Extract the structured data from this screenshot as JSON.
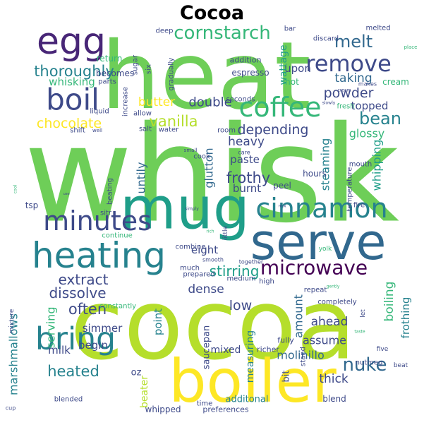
{
  "title": "Cocoa",
  "palette": {
    "dark_purple": "#440154",
    "purple": "#482677",
    "indigo": "#3e4a89",
    "blue": "#31688e",
    "teal_blue": "#26828e",
    "teal": "#1f9e89",
    "green_teal": "#35b779",
    "green": "#6ece58",
    "yellow_green": "#b5de2b",
    "yellow": "#fde725"
  },
  "words": [
    {
      "text": "whisk",
      "color": "#6ece58"
    },
    {
      "text": "heat",
      "color": "#6ece58"
    },
    {
      "text": "cocoa",
      "color": "#b5de2b"
    },
    {
      "text": "mug",
      "color": "#1f9e89"
    },
    {
      "text": "boiler",
      "color": "#fde725"
    },
    {
      "text": "serve",
      "color": "#31688e"
    },
    {
      "text": "heating",
      "color": "#26828e"
    },
    {
      "text": "egg",
      "color": "#482677"
    },
    {
      "text": "coffee",
      "color": "#35b779"
    },
    {
      "text": "cinnamon",
      "color": "#26828e"
    },
    {
      "text": "minutes",
      "color": "#3e4a89"
    },
    {
      "text": "bring",
      "color": "#26828e"
    },
    {
      "text": "microwave",
      "color": "#440154"
    },
    {
      "text": "boil",
      "color": "#3e4a89"
    },
    {
      "text": "remove",
      "color": "#3e4a89"
    },
    {
      "text": "cornstarch",
      "color": "#35b779"
    },
    {
      "text": "melt",
      "color": "#31688e"
    },
    {
      "text": "thoroughly",
      "color": "#26828e"
    },
    {
      "text": "nuke",
      "color": "#31688e"
    },
    {
      "text": "bean",
      "color": "#26828e"
    },
    {
      "text": "chocolate",
      "color": "#fde725"
    },
    {
      "text": "stirring",
      "color": "#1f9e89"
    },
    {
      "text": "extract",
      "color": "#3e4a89"
    },
    {
      "text": "heated",
      "color": "#26828e"
    },
    {
      "text": "dissolve",
      "color": "#3e4a89"
    },
    {
      "text": "often",
      "color": "#3e4a89"
    },
    {
      "text": "vanilla",
      "color": "#b5de2b"
    },
    {
      "text": "depending",
      "color": "#3e4a89"
    },
    {
      "text": "frothy",
      "color": "#3e4a89"
    },
    {
      "text": "powder",
      "color": "#3e4a89"
    },
    {
      "text": "butter",
      "color": "#fde725"
    },
    {
      "text": "double",
      "color": "#3e4a89"
    },
    {
      "text": "taking",
      "color": "#31688e"
    },
    {
      "text": "upon",
      "color": "#3e4a89"
    },
    {
      "text": "topped",
      "color": "#3e4a89"
    },
    {
      "text": "glossy",
      "color": "#35b779"
    },
    {
      "text": "steaming",
      "color": "#26828e"
    },
    {
      "text": "whipping",
      "color": "#1f9e89"
    },
    {
      "text": "glutton",
      "color": "#31688e"
    },
    {
      "text": "heavy",
      "color": "#3e4a89"
    },
    {
      "text": "paste",
      "color": "#3e4a89"
    },
    {
      "text": "burnt",
      "color": "#3e4a89"
    },
    {
      "text": "untily",
      "color": "#31688e"
    },
    {
      "text": "eight",
      "color": "#3e4a89"
    },
    {
      "text": "dense",
      "color": "#3e4a89"
    },
    {
      "text": "serving",
      "color": "#35b779"
    },
    {
      "text": "low",
      "color": "#3e4a89"
    },
    {
      "text": "point",
      "color": "#26828e"
    },
    {
      "text": "simmer",
      "color": "#3e4a89"
    },
    {
      "text": "begin",
      "color": "#3e4a89"
    },
    {
      "text": "milk",
      "color": "#3e4a89"
    },
    {
      "text": "marshmallows",
      "color": "#26828e"
    },
    {
      "text": "saucepan",
      "color": "#3e4a89"
    },
    {
      "text": "mixed",
      "color": "#3e4a89"
    },
    {
      "text": "measuring",
      "color": "#26828e"
    },
    {
      "text": "amount",
      "color": "#31688e"
    },
    {
      "text": "boiling",
      "color": "#35b779"
    },
    {
      "text": "frothing",
      "color": "#26828e"
    },
    {
      "text": "ahead",
      "color": "#3e4a89"
    },
    {
      "text": "assume",
      "color": "#3e4a89"
    },
    {
      "text": "molinillo",
      "color": "#31688e"
    },
    {
      "text": "thick",
      "color": "#3e4a89"
    },
    {
      "text": "additonal",
      "color": "#26828e"
    },
    {
      "text": "oz",
      "color": "#3e4a89"
    },
    {
      "text": "beater",
      "color": "#b5de2b"
    },
    {
      "text": "bit",
      "color": "#3e4a89"
    },
    {
      "text": "wattage",
      "color": "#1f9e89"
    },
    {
      "text": "espresso",
      "color": "#3e4a89"
    },
    {
      "text": "whisking",
      "color": "#35b779"
    },
    {
      "text": "parts",
      "color": "#3e4a89"
    },
    {
      "text": "sugar",
      "color": "#3e4a89"
    },
    {
      "text": "deep",
      "color": "#3e4a89"
    },
    {
      "text": "bar",
      "color": "#3e4a89"
    },
    {
      "text": "discard",
      "color": "#3e4a89"
    },
    {
      "text": "melted",
      "color": "#3e4a89"
    },
    {
      "text": "addition",
      "color": "#3e4a89"
    },
    {
      "text": "hot",
      "color": "#35b779"
    },
    {
      "text": "cream",
      "color": "#35b779"
    },
    {
      "text": "makes",
      "color": "#3e4a89"
    },
    {
      "text": "return",
      "color": "#35b779"
    },
    {
      "text": "becomes",
      "color": "#3e4a89"
    },
    {
      "text": "six",
      "color": "#3e4a89"
    },
    {
      "text": "gradually",
      "color": "#3e4a89"
    },
    {
      "text": "seconds",
      "color": "#3e4a89"
    },
    {
      "text": "increase",
      "color": "#3e4a89"
    },
    {
      "text": "liquid",
      "color": "#3e4a89"
    },
    {
      "text": "shift",
      "color": "#3e4a89"
    },
    {
      "text": "allow",
      "color": "#3e4a89"
    },
    {
      "text": "salt",
      "color": "#3e4a89"
    },
    {
      "text": "water",
      "color": "#3e4a89"
    },
    {
      "text": "room",
      "color": "#3e4a89"
    },
    {
      "text": "fresh",
      "color": "#35b779"
    },
    {
      "text": "cook",
      "color": "#3e4a89"
    },
    {
      "text": "care",
      "color": "#3e4a89"
    },
    {
      "text": "hours",
      "color": "#3e4a89"
    },
    {
      "text": "peel",
      "color": "#3e4a89"
    },
    {
      "text": "temperature",
      "color": "#3e4a89"
    },
    {
      "text": "mouth",
      "color": "#3e4a89"
    },
    {
      "text": "fire",
      "color": "#3e4a89"
    },
    {
      "text": "tsp",
      "color": "#3e4a89"
    },
    {
      "text": "sitr",
      "color": "#3e4a89"
    },
    {
      "text": "beating",
      "color": "#3e4a89"
    },
    {
      "text": "continue",
      "color": "#35b779"
    },
    {
      "text": "combine",
      "color": "#3e4a89"
    },
    {
      "text": "little",
      "color": "#3e4a89"
    },
    {
      "text": "yolk",
      "color": "#35b779"
    },
    {
      "text": "smooth",
      "color": "#3e4a89"
    },
    {
      "text": "much",
      "color": "#3e4a89"
    },
    {
      "text": "prepared",
      "color": "#3e4a89"
    },
    {
      "text": "medium",
      "color": "#3e4a89"
    },
    {
      "text": "high",
      "color": "#3e4a89"
    },
    {
      "text": "repeat",
      "color": "#3e4a89"
    },
    {
      "text": "completely",
      "color": "#3e4a89"
    },
    {
      "text": "let",
      "color": "#3e4a89"
    },
    {
      "text": "constantly",
      "color": "#35b779"
    },
    {
      "text": "mixture",
      "color": "#3e4a89"
    },
    {
      "text": "richer",
      "color": "#3e4a89"
    },
    {
      "text": "fully",
      "color": "#3e4a89"
    },
    {
      "text": "stand",
      "color": "#3e4a89"
    },
    {
      "text": "blended",
      "color": "#3e4a89"
    },
    {
      "text": "time",
      "color": "#3e4a89"
    },
    {
      "text": "five",
      "color": "#3e4a89"
    },
    {
      "text": "nutmeg",
      "color": "#3e4a89"
    },
    {
      "text": "beat",
      "color": "#3e4a89"
    },
    {
      "text": "whipped",
      "color": "#3e4a89"
    },
    {
      "text": "preferences",
      "color": "#3e4a89"
    },
    {
      "text": "blend",
      "color": "#3e4a89"
    },
    {
      "text": "cup",
      "color": "#3e4a89"
    },
    {
      "text": "place",
      "color": "#35b779"
    },
    {
      "text": "gently",
      "color": "#35b779"
    },
    {
      "text": "slowly",
      "color": "#3e4a89"
    },
    {
      "text": "well",
      "color": "#3e4a89"
    },
    {
      "text": "small",
      "color": "#3e4a89"
    },
    {
      "text": "together",
      "color": "#3e4a89"
    },
    {
      "text": "use",
      "color": "#3e4a89"
    },
    {
      "text": "cool",
      "color": "#35b779"
    },
    {
      "text": "rich",
      "color": "#35b779"
    },
    {
      "text": "cream",
      "color": "#3e4a89"
    },
    {
      "text": "simply",
      "color": "#3e4a89"
    },
    {
      "text": "taste",
      "color": "#35b779"
    },
    {
      "text": "mix",
      "color": "#3e4a89"
    }
  ]
}
